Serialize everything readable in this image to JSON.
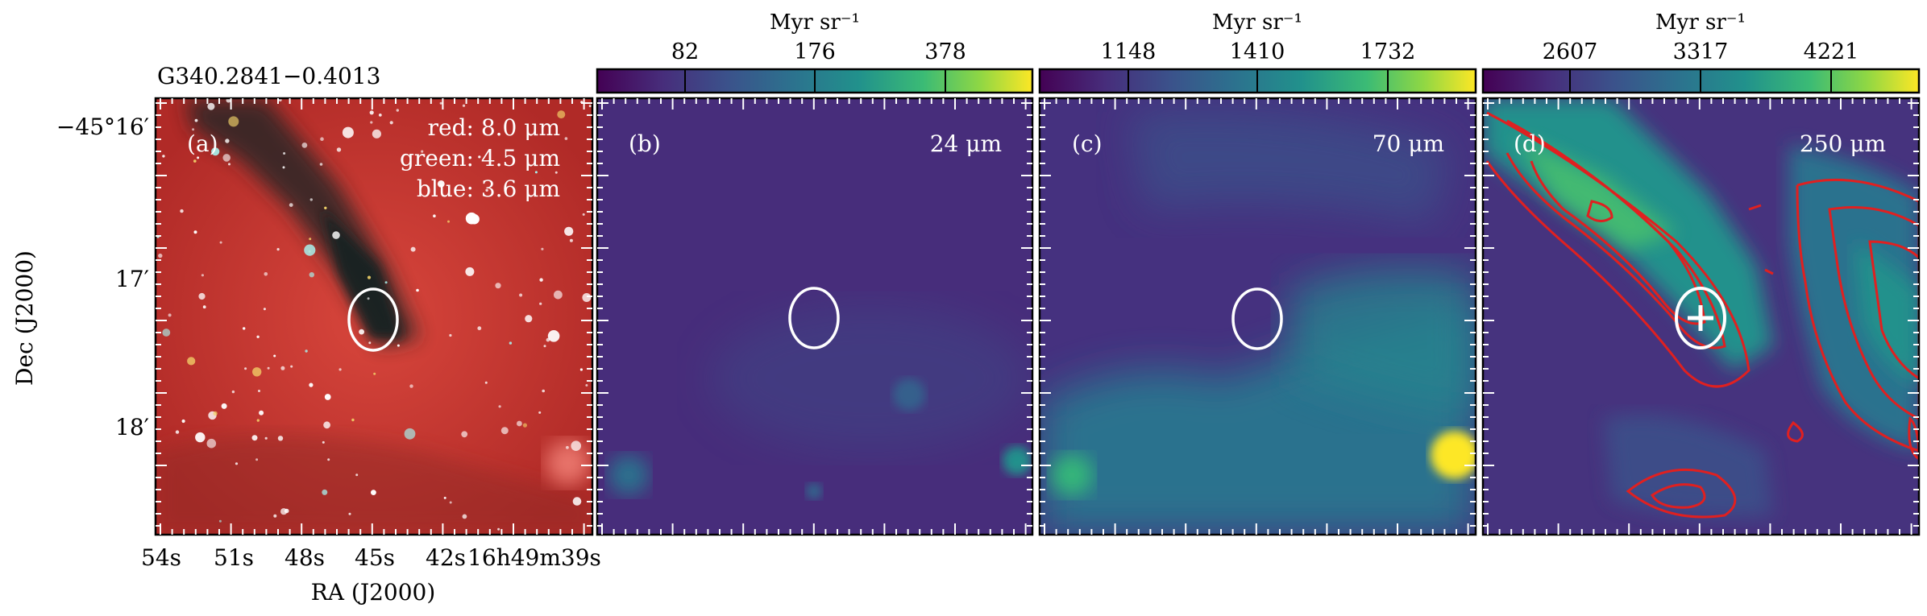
{
  "source_title": "G340.2841−0.4013",
  "axes": {
    "ylabel": "Dec (J2000)",
    "xlabel": "RA (J2000)",
    "y_ticks": [
      "−45°16′",
      "17′",
      "18′"
    ],
    "x_ticks": [
      "54s",
      "51s",
      "48s",
      "45s",
      "42s",
      "16h49m39s"
    ]
  },
  "panels": [
    {
      "tag": "(a)",
      "band_lines": [
        "red: 8.0 μm",
        "green: 4.5 μm",
        "blue: 3.6 μm"
      ],
      "image": "three-color-composite",
      "colors": {
        "bg": "#c0302b",
        "lane": "#1a2a28"
      }
    },
    {
      "tag": "(b)",
      "band": "24 μm",
      "colorbar": {
        "unit": "Myr sr⁻¹",
        "ticks": [
          "82",
          "176",
          "378"
        ]
      },
      "colors": {
        "bg": "#472d7b"
      }
    },
    {
      "tag": "(c)",
      "band": "70 μm",
      "colorbar": {
        "unit": "Myr sr⁻¹",
        "ticks": [
          "1148",
          "1410",
          "1732"
        ]
      },
      "colors": {
        "bg": "#3f3f8f"
      }
    },
    {
      "tag": "(d)",
      "band": "250 μm",
      "colorbar": {
        "unit": "Myr sr⁻¹",
        "ticks": [
          "2607",
          "3317",
          "4221"
        ]
      },
      "colors": {
        "bg": "#3e4a89",
        "contour": "#e02020"
      }
    }
  ],
  "markers": {
    "ellipse_color": "#ffffff",
    "cross_color": "#ffffff"
  }
}
